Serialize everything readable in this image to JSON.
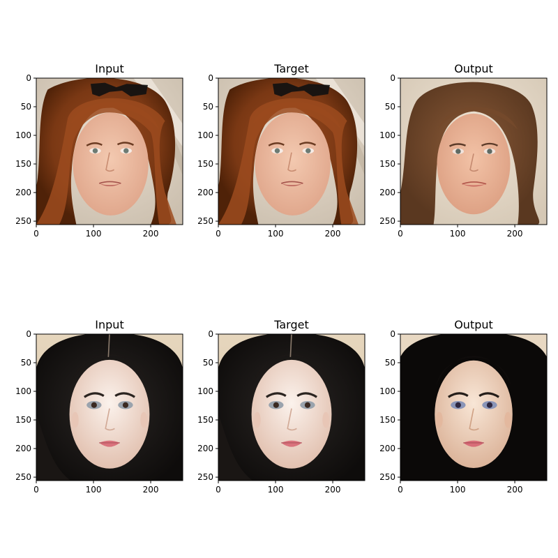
{
  "figure": {
    "panels": [
      {
        "title": "Input",
        "row": 0,
        "col": 0,
        "subject": "woman-auburn-hair-sunglasses-on-head"
      },
      {
        "title": "Target",
        "row": 0,
        "col": 1,
        "subject": "woman-auburn-hair-sunglasses-on-head"
      },
      {
        "title": "Output",
        "row": 0,
        "col": 2,
        "subject": "woman-auburn-hair-reconstructed"
      },
      {
        "title": "Input",
        "row": 1,
        "col": 0,
        "subject": "woman-dark-hair"
      },
      {
        "title": "Target",
        "row": 1,
        "col": 1,
        "subject": "woman-dark-hair"
      },
      {
        "title": "Output",
        "row": 1,
        "col": 2,
        "subject": "woman-dark-hair-reconstructed"
      }
    ],
    "axes": {
      "xticks": [
        0,
        100,
        200
      ],
      "yticks": [
        0,
        50,
        100,
        150,
        200,
        250
      ],
      "xlim": [
        0,
        256
      ],
      "ylim": [
        256,
        0
      ]
    },
    "colors": {
      "background": "#ffffff",
      "axis": "#000000"
    }
  }
}
